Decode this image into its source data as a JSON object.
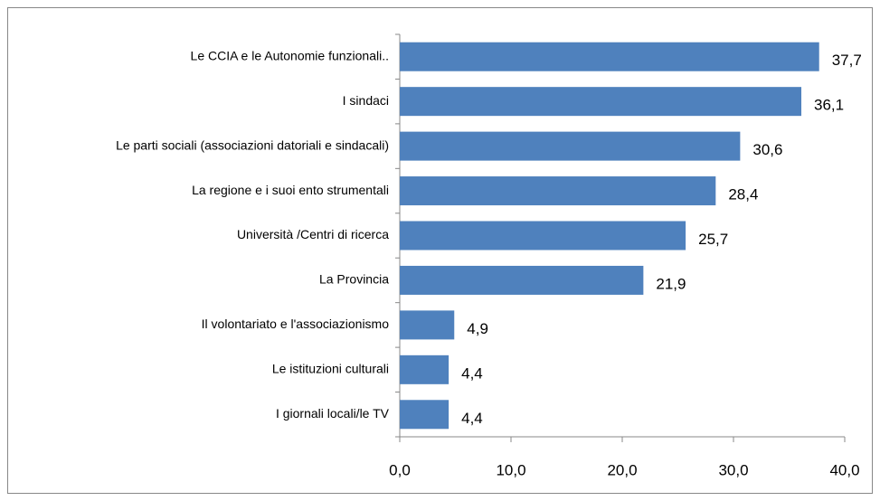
{
  "chart_data": {
    "type": "bar",
    "orientation": "horizontal",
    "color": "#4f81bd",
    "categories": [
      "Le CCIA e le Autonomie funzionali..",
      "I sindaci",
      "Le parti sociali (associazioni datoriali e sindacali)",
      "La regione e i suoi ento strumentali",
      "Università /Centri di ricerca",
      "La Provincia",
      "Il volontariato e l'associazionismo",
      "Le istituzioni culturali",
      "I giornali locali/le TV"
    ],
    "values": [
      37.7,
      36.1,
      30.6,
      28.4,
      25.7,
      21.9,
      4.9,
      4.4,
      4.4
    ],
    "value_labels": [
      "37,7",
      "36,1",
      "30,6",
      "28,4",
      "25,7",
      "21,9",
      "4,9",
      "4,4",
      "4,4"
    ],
    "xlim": [
      0,
      40
    ],
    "xticks": [
      {
        "value": 0,
        "label": "0,0"
      },
      {
        "value": 10,
        "label": "10,0"
      },
      {
        "value": 20,
        "label": "20,0"
      },
      {
        "value": 30,
        "label": "30,0"
      },
      {
        "value": 40,
        "label": "40,0"
      }
    ]
  }
}
